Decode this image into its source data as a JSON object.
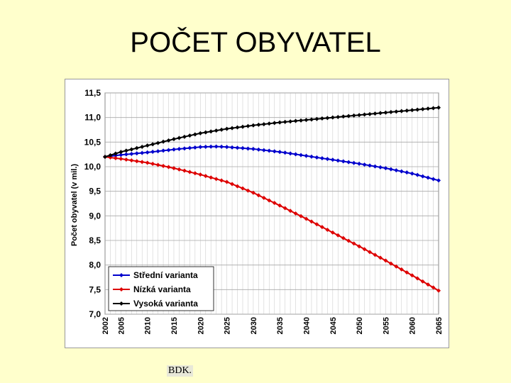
{
  "slide": {
    "title": "POČET OBYVATEL",
    "footer": "BDK."
  },
  "chart_data": {
    "type": "line",
    "ylabel": "Počet obyvatel (v mil.)",
    "ylim": [
      7.0,
      11.5
    ],
    "yticks": [
      "7,0",
      "7,5",
      "8,0",
      "8,5",
      "9,0",
      "9,5",
      "10,0",
      "10,5",
      "11,0",
      "11,5"
    ],
    "ytick_values": [
      7.0,
      7.5,
      8.0,
      8.5,
      9.0,
      9.5,
      10.0,
      10.5,
      11.0,
      11.5
    ],
    "xlim": [
      2002,
      2065
    ],
    "xticks": [
      "2002",
      "2005",
      "2010",
      "2015",
      "2020",
      "2025",
      "2030",
      "2035",
      "2040",
      "2045",
      "2050",
      "2055",
      "2060",
      "2065"
    ],
    "xtick_values": [
      2002,
      2005,
      2010,
      2015,
      2020,
      2025,
      2030,
      2035,
      2040,
      2045,
      2050,
      2055,
      2060,
      2065
    ],
    "grid": true,
    "legend_position": "bottom-left",
    "series": [
      {
        "name": "Střední varianta",
        "color": "#0000cc",
        "x": [
          2002,
          2005,
          2010,
          2015,
          2020,
          2023,
          2025,
          2030,
          2035,
          2040,
          2045,
          2050,
          2055,
          2060,
          2065
        ],
        "values": [
          10.2,
          10.24,
          10.29,
          10.35,
          10.4,
          10.41,
          10.4,
          10.36,
          10.3,
          10.22,
          10.14,
          10.06,
          9.97,
          9.86,
          9.72
        ]
      },
      {
        "name": "Nízká varianta",
        "color": "#dd0000",
        "x": [
          2002,
          2005,
          2010,
          2015,
          2020,
          2025,
          2030,
          2035,
          2040,
          2045,
          2050,
          2055,
          2060,
          2065
        ],
        "values": [
          10.2,
          10.16,
          10.08,
          9.97,
          9.84,
          9.69,
          9.47,
          9.21,
          8.94,
          8.66,
          8.38,
          8.09,
          7.79,
          7.48
        ]
      },
      {
        "name": "Vysoká varianta",
        "color": "#000000",
        "x": [
          2002,
          2005,
          2010,
          2015,
          2020,
          2025,
          2030,
          2035,
          2040,
          2045,
          2050,
          2055,
          2060,
          2065
        ],
        "values": [
          10.2,
          10.3,
          10.43,
          10.56,
          10.68,
          10.77,
          10.84,
          10.9,
          10.95,
          11.0,
          11.05,
          11.1,
          11.15,
          11.2
        ]
      }
    ]
  }
}
